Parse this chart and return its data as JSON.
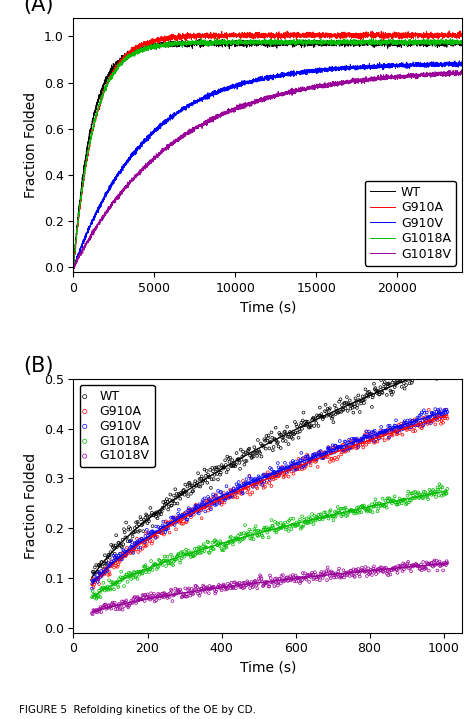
{
  "panel_A": {
    "title": "(A)",
    "xlabel": "Time (s)",
    "ylabel": "Fraction Folded",
    "xlim": [
      0,
      24000
    ],
    "ylim": [
      -0.02,
      1.08
    ],
    "yticks": [
      0.0,
      0.2,
      0.4,
      0.6,
      0.8,
      1.0
    ],
    "xticks": [
      0,
      5000,
      10000,
      15000,
      20000
    ],
    "curves": [
      {
        "label": "WT",
        "color": "#000000",
        "k": 0.0009,
        "ymax": 0.97,
        "noise": 0.006
      },
      {
        "label": "G910A",
        "color": "#ff0000",
        "k": 0.00075,
        "ymax": 1.005,
        "noise": 0.006
      },
      {
        "label": "G910V",
        "color": "#0000ff",
        "k": 0.00022,
        "ymax": 0.885,
        "noise": 0.005
      },
      {
        "label": "G1018A",
        "color": "#00bb00",
        "k": 0.0008,
        "ymax": 0.975,
        "noise": 0.005
      },
      {
        "label": "G1018V",
        "color": "#990099",
        "k": 0.00016,
        "ymax": 0.86,
        "noise": 0.005
      }
    ]
  },
  "panel_B": {
    "title": "(B)",
    "xlabel": "Time (s)",
    "ylabel": "Fraction Folded",
    "xlim": [
      0,
      1050
    ],
    "ylim": [
      -0.01,
      0.5
    ],
    "yticks": [
      0.0,
      0.1,
      0.2,
      0.3,
      0.4,
      0.5
    ],
    "xticks": [
      0,
      200,
      400,
      600,
      800,
      1000
    ],
    "curves": [
      {
        "label": "WT",
        "color": "#000000",
        "a": 0.0118,
        "b": 0.55,
        "c": 0.0,
        "noise": 0.01
      },
      {
        "label": "G910A",
        "color": "#ff0000",
        "a": 0.0094,
        "b": 0.55,
        "c": 0.005,
        "noise": 0.007
      },
      {
        "label": "G910V",
        "color": "#0000ff",
        "a": 0.0096,
        "b": 0.55,
        "c": 0.005,
        "noise": 0.006
      },
      {
        "label": "G1018A",
        "color": "#00bb00",
        "a": 0.0059,
        "b": 0.55,
        "c": 0.01,
        "noise": 0.006
      },
      {
        "label": "G1018V",
        "color": "#990099",
        "a": 0.0027,
        "b": 0.55,
        "c": 0.008,
        "noise": 0.005
      }
    ]
  },
  "caption": "FIGURE 5  Refolding kinetics of the OE by CD.",
  "figure_label_fontsize": 15,
  "axis_label_fontsize": 10,
  "tick_fontsize": 9,
  "legend_fontsize": 9
}
